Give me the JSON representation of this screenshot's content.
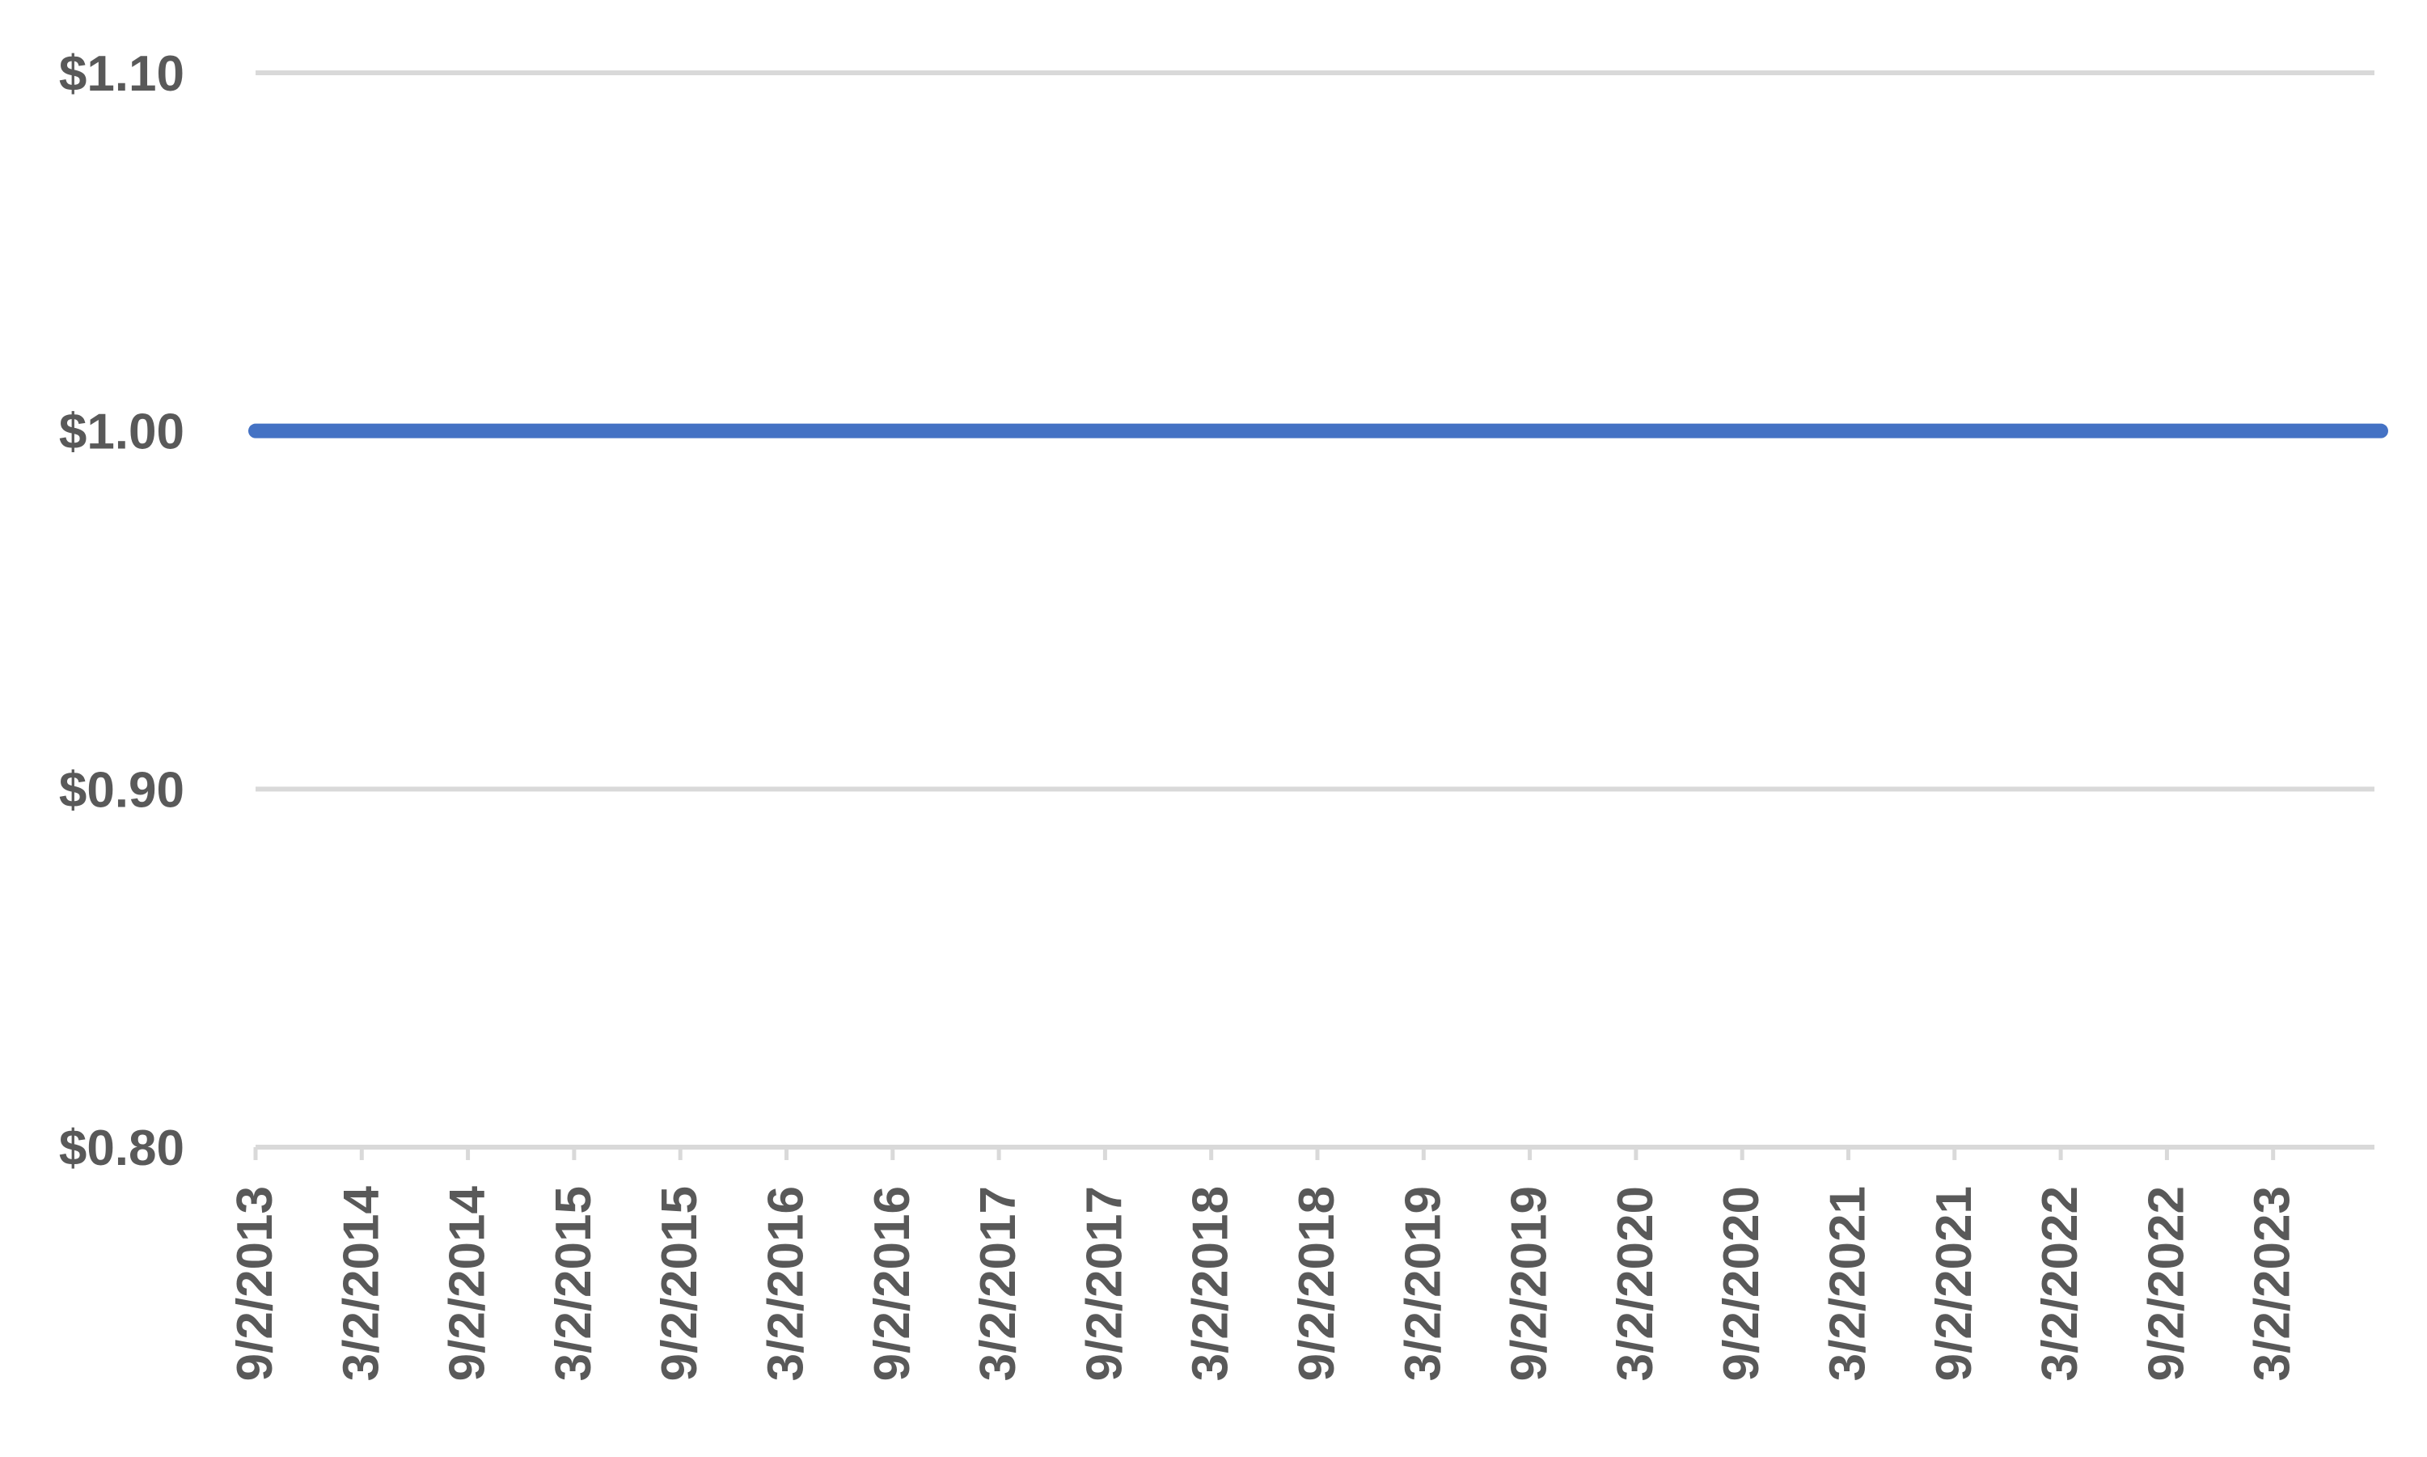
{
  "chart_data": {
    "type": "line",
    "title": "",
    "xlabel": "",
    "ylabel": "",
    "ylim": [
      0.8,
      1.1
    ],
    "y_ticks": [
      0.8,
      0.9,
      1.0,
      1.1
    ],
    "y_tick_labels": [
      "$0.80",
      "$0.90",
      "$1.00",
      "$1.10"
    ],
    "x_tick_labels": [
      "9/2/2013",
      "3/2/2014",
      "9/2/2014",
      "3/2/2015",
      "9/2/2015",
      "3/2/2016",
      "9/2/2016",
      "3/2/2017",
      "9/2/2017",
      "3/2/2018",
      "9/2/2018",
      "3/2/2019",
      "9/2/2019",
      "3/2/2020",
      "9/2/2020",
      "3/2/2021",
      "9/2/2021",
      "3/2/2022",
      "9/2/2022",
      "3/2/2023"
    ],
    "x": [
      "9/2/2013",
      "12/1/2023"
    ],
    "series": [
      {
        "values": [
          1.0,
          1.0
        ],
        "color": "#4472C4"
      }
    ],
    "grid": true,
    "legend": "none",
    "colors": {
      "line": "#4472C4",
      "grid": "#D9D9D9",
      "tick_text": "#595959"
    }
  }
}
